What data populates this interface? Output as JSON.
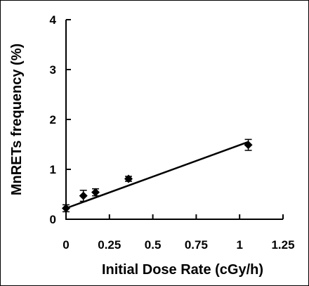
{
  "chart_data": {
    "type": "scatter",
    "xlabel": "Initial Dose Rate (cGy/h)",
    "ylabel": "MnRETs frequency (%)",
    "xlim": [
      0,
      1.25
    ],
    "ylim": [
      0,
      4
    ],
    "x_ticks": [
      "0",
      "0.25",
      "0.5",
      "0.75",
      "1",
      "1.25"
    ],
    "y_ticks": [
      "0",
      "1",
      "2",
      "3",
      "4"
    ],
    "grid": false,
    "legend": "none",
    "marker": "diamond",
    "color": "#000000",
    "points": [
      {
        "x": 0.0,
        "y": 0.22,
        "err": 0.07
      },
      {
        "x": 0.1,
        "y": 0.47,
        "err": 0.11
      },
      {
        "x": 0.17,
        "y": 0.54,
        "err": 0.07
      },
      {
        "x": 0.36,
        "y": 0.81,
        "err": 0.05
      },
      {
        "x": 1.05,
        "y": 1.49,
        "err": 0.11
      }
    ],
    "fit_line": {
      "x": [
        0.0,
        1.05
      ],
      "y": [
        0.22,
        1.55
      ]
    }
  }
}
